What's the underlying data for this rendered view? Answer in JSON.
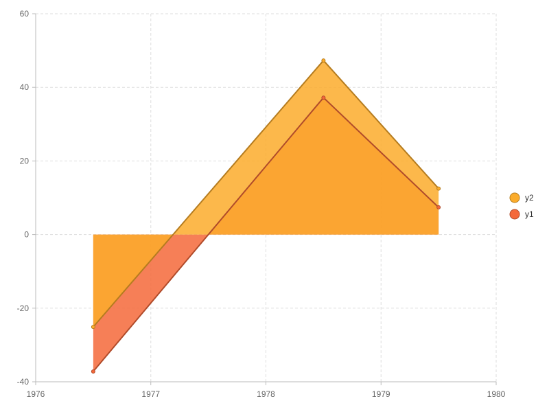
{
  "chart_data": {
    "type": "area",
    "x": [
      1976.5,
      1978.5,
      1979.5
    ],
    "series": [
      {
        "name": "y1",
        "values": [
          -37.2,
          37.2,
          7.4
        ],
        "color": "#f4683a"
      },
      {
        "name": "y2",
        "values": [
          -25.1,
          47.3,
          12.5
        ],
        "color": "#fbac2b"
      }
    ],
    "stacked": false,
    "xlim": [
      1976,
      1980
    ],
    "ylim": [
      -40,
      60
    ],
    "x_ticks": [
      "1976",
      "1977",
      "1978",
      "1979",
      "1980"
    ],
    "y_ticks": [
      "-40",
      "-20",
      "0",
      "20",
      "40",
      "60"
    ],
    "grid": true,
    "legend": {
      "position": "right",
      "items": [
        "y2",
        "y1"
      ]
    }
  }
}
